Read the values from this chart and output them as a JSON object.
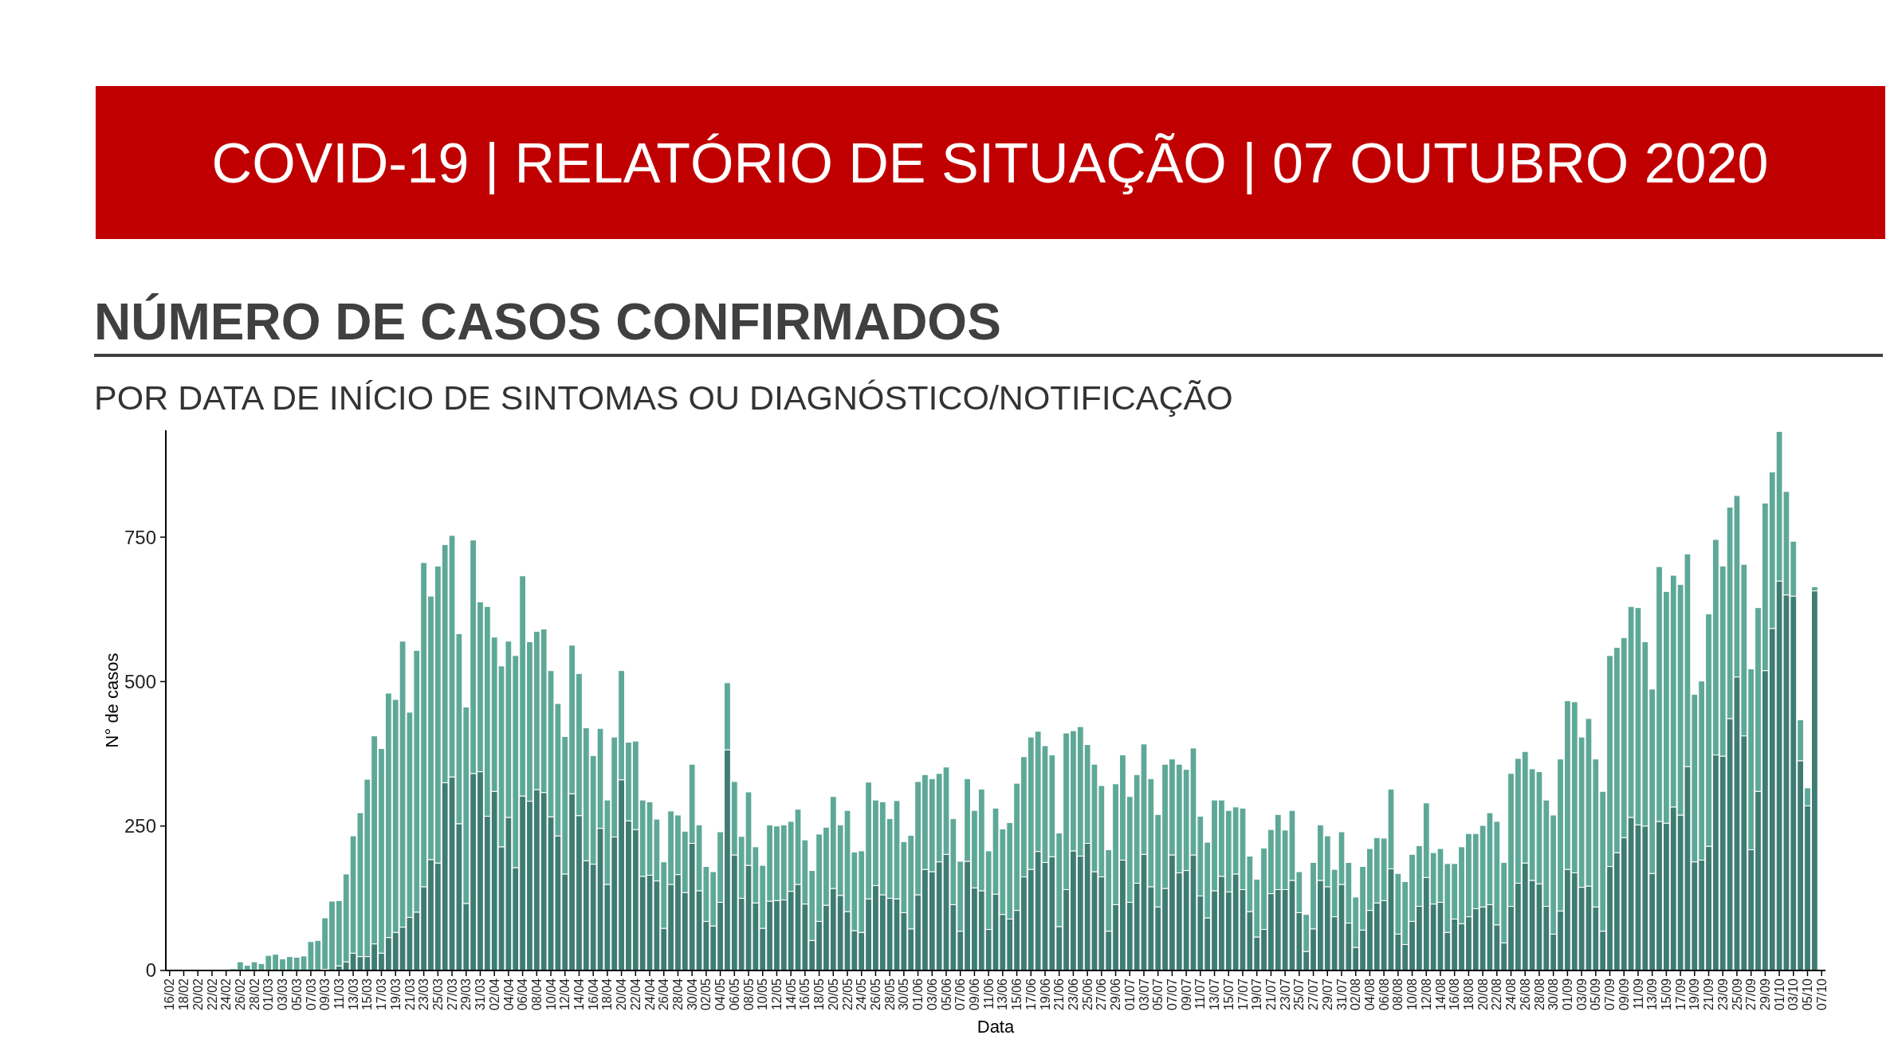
{
  "chart_data": {
    "type": "bar",
    "stacked": true,
    "title": "NÚMERO DE CASOS CONFIRMADOS",
    "subtitle": "POR DATA DE INÍCIO DE SINTOMAS OU DIAGNÓSTICO/NOTIFICAÇÃO",
    "annotations": [
      "COVID-19 | RELATÓRIO DE SITUAÇÃO | 07 OUTUBRO 2020"
    ],
    "xlabel": "Data",
    "ylabel": "N° de casos",
    "ylim": [
      0,
      935
    ],
    "yticks": [
      0,
      250,
      500,
      750
    ],
    "grid": false,
    "categories": [
      "16/02",
      null,
      "18/02",
      null,
      "20/02",
      null,
      "22/02",
      null,
      "24/02",
      null,
      "26/02",
      null,
      "28/02",
      null,
      "01/03",
      null,
      "03/03",
      null,
      "05/03",
      null,
      "07/03",
      null,
      "09/03",
      null,
      "11/03",
      null,
      "13/03",
      null,
      "15/03",
      null,
      "17/03",
      null,
      "19/03",
      null,
      "21/03",
      null,
      "23/03",
      null,
      "25/03",
      null,
      "27/03",
      null,
      "29/03",
      null,
      "31/03",
      null,
      "02/04",
      null,
      "04/04",
      null,
      "06/04",
      null,
      "08/04",
      null,
      "10/04",
      null,
      "12/04",
      null,
      "14/04",
      null,
      "16/04",
      null,
      "18/04",
      null,
      "20/04",
      null,
      "22/04",
      null,
      "24/04",
      null,
      "26/04",
      null,
      "28/04",
      null,
      "30/04",
      null,
      "02/05",
      null,
      "04/05",
      null,
      "06/05",
      null,
      "08/05",
      null,
      "10/05",
      null,
      "12/05",
      null,
      "14/05",
      null,
      "16/05",
      null,
      "18/05",
      null,
      "20/05",
      null,
      "22/05",
      null,
      "24/05",
      null,
      "26/05",
      null,
      "28/05",
      null,
      "30/05",
      null,
      "01/06",
      null,
      "03/06",
      null,
      "05/06",
      null,
      "07/06",
      null,
      "09/06",
      null,
      "11/06",
      null,
      "13/06",
      null,
      "15/06",
      null,
      "17/06",
      null,
      "19/06",
      null,
      "21/06",
      null,
      "23/06",
      null,
      "25/06",
      null,
      "27/06",
      null,
      "29/06",
      null,
      "01/07",
      null,
      "03/07",
      null,
      "05/07",
      null,
      "07/07",
      null,
      "09/07",
      null,
      "11/07",
      null,
      "13/07",
      null,
      "15/07",
      null,
      "17/07",
      null,
      "19/07",
      null,
      "21/07",
      null,
      "23/07",
      null,
      "25/07",
      null,
      "27/07",
      null,
      "29/07",
      null,
      "31/07",
      null,
      "02/08",
      null,
      "04/08",
      null,
      "06/08",
      null,
      "08/08",
      null,
      "10/08",
      null,
      "12/08",
      null,
      "14/08",
      null,
      "16/08",
      null,
      "18/08",
      null,
      "20/08",
      null,
      "22/08",
      null,
      "24/08",
      null,
      "26/08",
      null,
      "28/08",
      null,
      "30/08",
      null,
      "01/09",
      null,
      "03/09",
      null,
      "05/09",
      null,
      "07/09",
      null,
      "09/09",
      null,
      "11/09",
      null,
      "13/09",
      null,
      "15/09",
      null,
      "17/09",
      null,
      "19/09",
      null,
      "21/09",
      null,
      "23/09",
      null,
      "25/09",
      null,
      "27/09",
      null,
      "29/09",
      null,
      "01/10",
      null,
      "03/10",
      null,
      "05/10",
      null,
      "07/10"
    ],
    "series": [
      {
        "color": "#3f7c73",
        "values": [
          0,
          0,
          0,
          0,
          0,
          0,
          0,
          0,
          0,
          0,
          0,
          0,
          0,
          0,
          0,
          0,
          0,
          0,
          0,
          0,
          0,
          0,
          2,
          null,
          8,
          15,
          30,
          24,
          24,
          46,
          30,
          57,
          66,
          75,
          92,
          101,
          145,
          192,
          186,
          325,
          335,
          254,
          116,
          341,
          344,
          267,
          310,
          214,
          265,
          178,
          302,
          293,
          313,
          308,
          266,
          233,
          167,
          306,
          268,
          190,
          184,
          246,
          149,
          231,
          330,
          259,
          244,
          163,
          165,
          155,
          73,
          149,
          166,
          135,
          220,
          138,
          85,
          77,
          118,
          382,
          200,
          125,
          182,
          117,
          73,
          120,
          121,
          122,
          137,
          149,
          115,
          52,
          85,
          113,
          142,
          130,
          102,
          69,
          66,
          124,
          147,
          131,
          125,
          124,
          100,
          72,
          131,
          175,
          171,
          188,
          201,
          114,
          68,
          189,
          143,
          138,
          71,
          132,
          97,
          89,
          104,
          162,
          175,
          206,
          187,
          197,
          76,
          140,
          207,
          198,
          220,
          171,
          162,
          68,
          114,
          191,
          118,
          151,
          201,
          145,
          110,
          142,
          200,
          169,
          173,
          200,
          129,
          91,
          138,
          163,
          136,
          167,
          140,
          102,
          58,
          71,
          133,
          140,
          140,
          156,
          100,
          33,
          72,
          156,
          145,
          93,
          149,
          82,
          40,
          70,
          104,
          117,
          121,
          176,
          63,
          45,
          85,
          111,
          161,
          115,
          118,
          66,
          89,
          81,
          93,
          107,
          110,
          114,
          79,
          48,
          111,
          151,
          186,
          156,
          150,
          111,
          63,
          103,
          175,
          169,
          144,
          146,
          110,
          68,
          180,
          204,
          230,
          265,
          252,
          250,
          168,
          258,
          255,
          283,
          269,
          353,
          188,
          191,
          215,
          373,
          371,
          436,
          508,
          406,
          209,
          310,
          519,
          592,
          674,
          650,
          648,
          363,
          285,
          657,
          0
        ]
      },
      {
        "color": "#5ea897",
        "values": [
          0,
          0,
          0,
          0,
          0,
          1,
          0,
          2,
          0,
          3,
          15,
          9,
          15,
          12,
          26,
          28,
          20,
          24,
          23,
          25,
          50,
          52,
          89,
          120,
          113,
          152,
          203,
          249,
          307,
          360,
          354,
          423,
          403,
          495,
          355,
          453,
          561,
          456,
          514,
          412,
          418,
          329,
          340,
          404,
          294,
          363,
          267,
          313,
          305,
          367,
          381,
          276,
          274,
          283,
          253,
          229,
          238,
          257,
          246,
          230,
          188,
          173,
          146,
          173,
          189,
          136,
          153,
          132,
          127,
          107,
          115,
          127,
          103,
          106,
          137,
          114,
          95,
          94,
          122,
          116,
          127,
          107,
          127,
          97,
          109,
          132,
          129,
          130,
          121,
          130,
          111,
          121,
          151,
          135,
          159,
          122,
          175,
          136,
          141,
          202,
          148,
          161,
          138,
          170,
          123,
          162,
          196,
          164,
          161,
          153,
          151,
          149,
          121,
          143,
          134,
          176,
          136,
          149,
          148,
          167,
          220,
          208,
          229,
          208,
          202,
          176,
          162,
          271,
          208,
          224,
          171,
          186,
          158,
          141,
          209,
          182,
          183,
          188,
          191,
          187,
          160,
          215,
          166,
          188,
          175,
          185,
          138,
          131,
          157,
          132,
          141,
          116,
          141,
          96,
          100,
          141,
          111,
          130,
          103,
          121,
          71,
          64,
          115,
          96,
          88,
          82,
          91,
          105,
          87,
          110,
          107,
          113,
          108,
          138,
          105,
          109,
          116,
          105,
          129,
          89,
          93,
          119,
          96,
          133,
          144,
          130,
          141,
          159,
          179,
          139,
          230,
          216,
          193,
          193,
          194,
          184,
          206,
          263,
          292,
          296,
          260,
          290,
          256,
          242,
          365,
          355,
          346,
          365,
          376,
          319,
          319,
          441,
          401,
          401,
          399,
          368,
          290,
          310,
          402,
          373,
          329,
          366,
          314,
          297,
          313,
          318,
          290,
          271,
          259,
          179,
          95,
          71,
          31,
          7,
          0
        ]
      }
    ]
  }
}
